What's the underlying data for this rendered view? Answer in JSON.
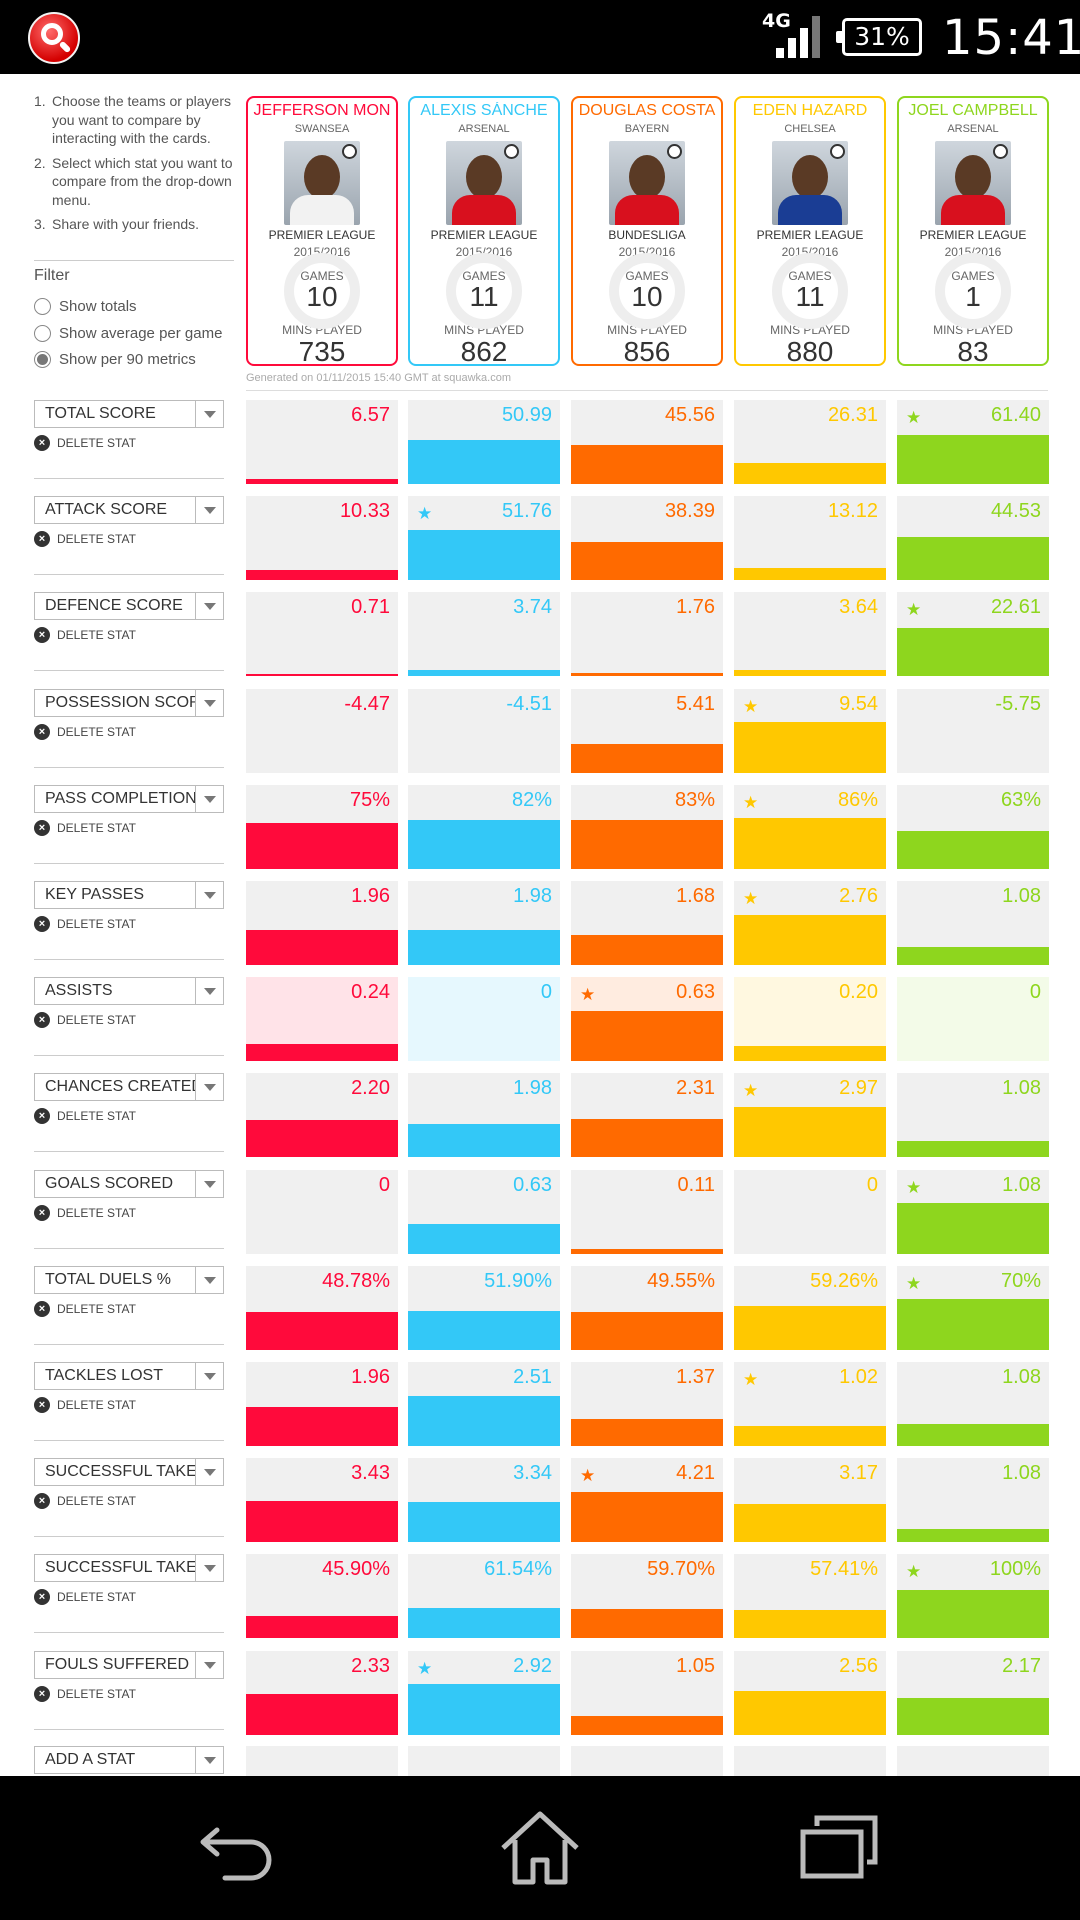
{
  "status_bar": {
    "network": "4G",
    "battery": "31%",
    "time": "15:41"
  },
  "instructions": [
    {
      "num": "1.",
      "text": "Choose the teams or players you want to compare by interacting with the cards."
    },
    {
      "num": "2.",
      "text": "Select which stat you want to compare from the drop-down menu."
    },
    {
      "num": "3.",
      "text": "Share with your friends."
    }
  ],
  "filter": {
    "title": "Filter",
    "options": [
      {
        "label": "Show totals",
        "selected": false
      },
      {
        "label": "Show average per game",
        "selected": false
      },
      {
        "label": "Show per 90 metrics",
        "selected": true
      }
    ]
  },
  "card_labels": {
    "games": "GAMES",
    "mins": "MINS PLAYED"
  },
  "players": [
    {
      "name": "JEFFERSON MON",
      "club": "SWANSEA",
      "league": "PREMIER LEAGUE",
      "season": "2015/2016",
      "games": "10",
      "mins": "735",
      "color": "#ff0a3b",
      "light": "#ffe3e8",
      "kit": "#f2f2f2"
    },
    {
      "name": "ALEXIS SÁNCHE",
      "club": "ARSENAL",
      "league": "PREMIER LEAGUE",
      "season": "2015/2016",
      "games": "11",
      "mins": "862",
      "color": "#33c8f7",
      "light": "#e6f8fe",
      "kit": "#d8101e"
    },
    {
      "name": "DOUGLAS COSTA",
      "club": "BAYERN",
      "league": "BUNDESLIGA",
      "season": "2015/2016",
      "games": "10",
      "mins": "856",
      "color": "#ff6a00",
      "light": "#ffece0",
      "kit": "#d8101e"
    },
    {
      "name": "EDEN HAZARD",
      "club": "CHELSEA",
      "league": "PREMIER LEAGUE",
      "season": "2015/2016",
      "games": "11",
      "mins": "880",
      "color": "#ffc800",
      "light": "#fff8e0",
      "kit": "#1a3d94"
    },
    {
      "name": "JOEL CAMPBELL",
      "club": "ARSENAL",
      "league": "PREMIER LEAGUE",
      "season": "2015/2016",
      "games": "1",
      "mins": "83",
      "color": "#8ed61e",
      "light": "#f3fbe8",
      "kit": "#d8101e"
    }
  ],
  "generated": "Generated on 01/11/2015 15:40 GMT at squawka.com",
  "delete_label": "DELETE STAT",
  "stats": [
    {
      "label": "TOTAL SCORE",
      "values": [
        "6.57",
        "50.99",
        "45.56",
        "26.31",
        "61.40"
      ],
      "fill": [
        0.06,
        0.52,
        0.46,
        0.25,
        0.58
      ],
      "star": 4,
      "light": false
    },
    {
      "label": "ATTACK SCORE",
      "values": [
        "10.33",
        "51.76",
        "38.39",
        "13.12",
        "44.53"
      ],
      "fill": [
        0.12,
        0.6,
        0.45,
        0.15,
        0.52
      ],
      "star": 1,
      "light": false
    },
    {
      "label": "DEFENCE SCORE",
      "values": [
        "0.71",
        "3.74",
        "1.76",
        "3.64",
        "22.61"
      ],
      "fill": [
        0.02,
        0.08,
        0.04,
        0.08,
        0.58
      ],
      "star": 4,
      "light": false
    },
    {
      "label": "POSSESSION SCORE",
      "values": [
        "-4.47",
        "-4.51",
        "5.41",
        "9.54",
        "-5.75"
      ],
      "fill": [
        0,
        0,
        0.34,
        0.6,
        0
      ],
      "star": 3,
      "light": false
    },
    {
      "label": "PASS COMPLETION",
      "values": [
        "75%",
        "82%",
        "83%",
        "86%",
        "63%"
      ],
      "fill": [
        0.55,
        0.58,
        0.58,
        0.6,
        0.45
      ],
      "star": 3,
      "light": false
    },
    {
      "label": "KEY PASSES",
      "values": [
        "1.96",
        "1.98",
        "1.68",
        "2.76",
        "1.08"
      ],
      "fill": [
        0.42,
        0.42,
        0.36,
        0.6,
        0.22
      ],
      "star": 3,
      "light": false
    },
    {
      "label": "ASSISTS",
      "values": [
        "0.24",
        "0",
        "0.63",
        "0.20",
        "0"
      ],
      "fill": [
        0.2,
        0,
        0.6,
        0.18,
        0
      ],
      "star": 2,
      "light": true
    },
    {
      "label": "CHANCES CREATED",
      "values": [
        "2.20",
        "1.98",
        "2.31",
        "2.97",
        "1.08"
      ],
      "fill": [
        0.44,
        0.4,
        0.46,
        0.6,
        0.2
      ],
      "star": 3,
      "light": false
    },
    {
      "label": "GOALS SCORED",
      "values": [
        "0",
        "0.63",
        "0.11",
        "0",
        "1.08"
      ],
      "fill": [
        0,
        0.35,
        0.06,
        0,
        0.6
      ],
      "star": 4,
      "light": false
    },
    {
      "label": "TOTAL DUELS %",
      "values": [
        "48.78%",
        "51.90%",
        "49.55%",
        "59.26%",
        "70%"
      ],
      "fill": [
        0.45,
        0.46,
        0.45,
        0.52,
        0.6
      ],
      "star": 4,
      "light": false
    },
    {
      "label": "TACKLES LOST",
      "values": [
        "1.96",
        "2.51",
        "1.37",
        "1.02",
        "1.08"
      ],
      "fill": [
        0.47,
        0.6,
        0.32,
        0.24,
        0.26
      ],
      "star": 3,
      "light": false
    },
    {
      "label": "SUCCESSFUL TAKE O",
      "values": [
        "3.43",
        "3.34",
        "4.21",
        "3.17",
        "1.08"
      ],
      "fill": [
        0.49,
        0.48,
        0.6,
        0.46,
        0.16
      ],
      "star": 2,
      "light": false
    },
    {
      "label": "SUCCESSFUL TAKE O",
      "values": [
        "45.90%",
        "61.54%",
        "59.70%",
        "57.41%",
        "100%"
      ],
      "fill": [
        0.27,
        0.36,
        0.35,
        0.34,
        0.58
      ],
      "star": 4,
      "light": false
    },
    {
      "label": "FOULS SUFFERED",
      "values": [
        "2.33",
        "2.92",
        "1.05",
        "2.56",
        "2.17"
      ],
      "fill": [
        0.48,
        0.6,
        0.22,
        0.52,
        0.44
      ],
      "star": 1,
      "light": false
    }
  ],
  "add_stat": "ADD A STAT"
}
